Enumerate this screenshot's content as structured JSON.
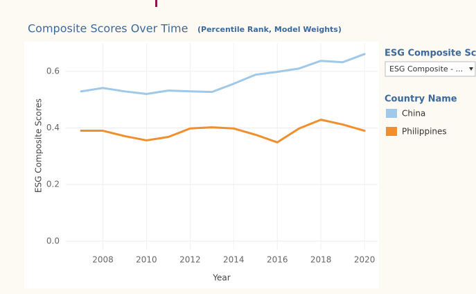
{
  "chart_data": {
    "type": "line",
    "title": "Composite Scores Over Time",
    "subtitle": "(Percentile Rank, Model Weights)",
    "x_label": "Year",
    "y_label": "ESG Composite Scores",
    "x": [
      2007,
      2008,
      2009,
      2010,
      2011,
      2012,
      2013,
      2014,
      2015,
      2016,
      2017,
      2018,
      2019,
      2020
    ],
    "series": [
      {
        "name": "China",
        "color": "#a0c8e8",
        "values": [
          0.529,
          0.541,
          0.529,
          0.52,
          0.532,
          0.529,
          0.527,
          0.556,
          0.588,
          0.598,
          0.61,
          0.637,
          0.632,
          0.661
        ]
      },
      {
        "name": "Philippines",
        "color": "#f28e2b",
        "values": [
          0.39,
          0.39,
          0.371,
          0.356,
          0.368,
          0.398,
          0.402,
          0.398,
          0.376,
          0.349,
          0.398,
          0.429,
          0.412,
          0.39
        ]
      }
    ],
    "xlim": [
      2006.3,
      2020.6
    ],
    "xticks": [
      2008,
      2010,
      2012,
      2014,
      2016,
      2018,
      2020
    ],
    "ylim": [
      -0.03,
      0.7
    ],
    "yticks": [
      {
        "value": 0,
        "label": "0.0"
      },
      0.2,
      0.4,
      0.6
    ],
    "grid": true,
    "legend_title": "Country Name"
  },
  "filter": {
    "title": "ESG Composite Sc...",
    "value": "ESG Composite - ..."
  }
}
